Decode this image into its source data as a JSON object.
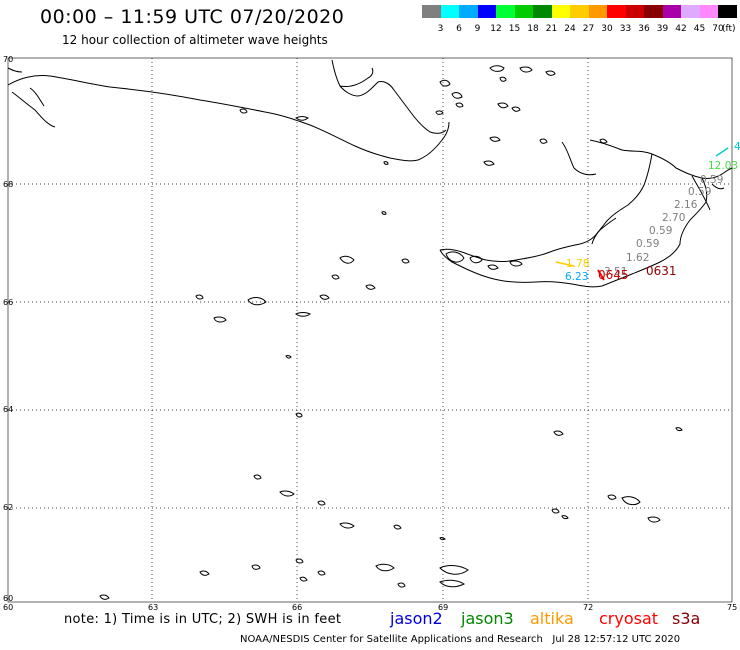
{
  "header": {
    "title": "00:00 – 11:59 UTC 07/20/2020",
    "subtitle": "12 hour collection of altimeter wave heights"
  },
  "legend": {
    "colors": [
      "#7f7f7f",
      "#00ffff",
      "#00aaff",
      "#0000ff",
      "#00ff33",
      "#00cc00",
      "#008800",
      "#ffff00",
      "#ffcc00",
      "#ff9900",
      "#ff0000",
      "#cc0000",
      "#880000",
      "#aa00aa",
      "#ddaaff",
      "#ff88ff",
      "#000000"
    ],
    "labels": [
      "3",
      "6",
      "9",
      "12",
      "15",
      "18",
      "21",
      "24",
      "27",
      "30",
      "33",
      "36",
      "39",
      "42",
      "45",
      "70"
    ],
    "unit": "(ft)"
  },
  "axes": {
    "lat_labels": [
      "70",
      "68",
      "66",
      "64",
      "62",
      "60"
    ],
    "lon_labels": [
      "60",
      "63",
      "66",
      "69",
      "72",
      "75"
    ]
  },
  "wave_values": [
    {
      "text": "4",
      "color": "#00cccc"
    },
    {
      "text": "12.03",
      "color": "#44dd44"
    },
    {
      "text": "0.59",
      "color": "#7f7f7f"
    },
    {
      "text": "0.59",
      "color": "#7f7f7f"
    },
    {
      "text": "2.16",
      "color": "#7f7f7f"
    },
    {
      "text": "2.70",
      "color": "#7f7f7f"
    },
    {
      "text": "0.59",
      "color": "#7f7f7f"
    },
    {
      "text": "0.59",
      "color": "#7f7f7f"
    },
    {
      "text": "1.62",
      "color": "#7f7f7f"
    },
    {
      "text": "3.51",
      "color": "#7f7f7f"
    },
    {
      "text": "6.23",
      "color": "#00aaff"
    },
    {
      "text": "1.78",
      "color": "#ffcc00"
    }
  ],
  "pass_times": [
    {
      "text": "0645",
      "color": "#cc0000"
    },
    {
      "text": "0631",
      "color": "#880000"
    }
  ],
  "footer": {
    "note": "note: 1) Time is in UTC; 2) SWH is in feet",
    "satellites": [
      {
        "name": "jason2",
        "color": "#0000dd"
      },
      {
        "name": "jason3",
        "color": "#008800"
      },
      {
        "name": "altika",
        "color": "#ff9900"
      },
      {
        "name": "cryosat",
        "color": "#ff0000"
      },
      {
        "name": "s3a",
        "color": "#880000"
      }
    ],
    "credit": "NOAA/NESDIS Center for Satellite Applications and Research   Jul 28 12:57:12 UTC 2020"
  }
}
